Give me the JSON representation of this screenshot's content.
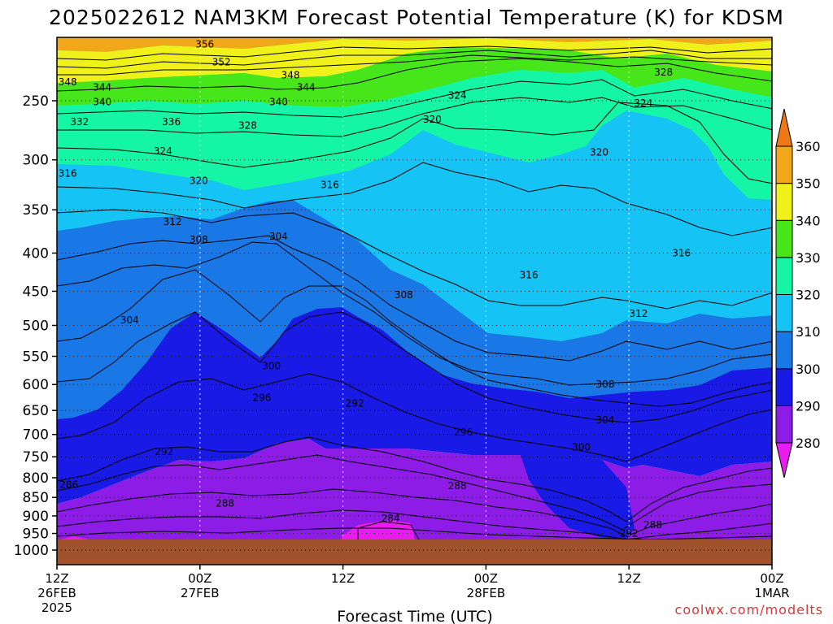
{
  "chart_data": {
    "type": "contour",
    "title": "2025022612 NAM3KM Forecast Potential Temperature (K) for KDSM",
    "xlabel": "Forecast Time (UTC)",
    "credit": "coolwx.com/modelts",
    "x_ticks": [
      {
        "hours": 0,
        "lines": [
          "12Z",
          "26FEB",
          "2025"
        ]
      },
      {
        "hours": 12,
        "lines": [
          "00Z",
          "27FEB"
        ]
      },
      {
        "hours": 24,
        "lines": [
          "12Z"
        ]
      },
      {
        "hours": 36,
        "lines": [
          "00Z",
          "28FEB"
        ]
      },
      {
        "hours": 48,
        "lines": [
          "12Z"
        ]
      },
      {
        "hours": 60,
        "lines": [
          "00Z",
          "1MAR"
        ]
      }
    ],
    "xlim_hours": [
      0,
      60
    ],
    "y_axis": {
      "scale": "pressure",
      "inverted": true,
      "ticks": [
        250,
        300,
        350,
        400,
        450,
        500,
        550,
        600,
        650,
        700,
        750,
        800,
        850,
        900,
        950,
        1000
      ]
    },
    "colorbar": {
      "levels": [
        280,
        290,
        300,
        310,
        320,
        330,
        340,
        350,
        360
      ],
      "colors": [
        "#e81cf0",
        "#8c1ce6",
        "#1a1ae6",
        "#1a78e6",
        "#16c3f5",
        "#14f5a6",
        "#47e61a",
        "#f0f01a",
        "#f0a81a",
        "#f07814"
      ],
      "extend": "both"
    },
    "ground_color": "#a0522d",
    "contour_labels": [
      {
        "v": "356",
        "t": 12.4,
        "p": 210
      },
      {
        "v": "352",
        "t": 13.8,
        "p": 222
      },
      {
        "v": "348",
        "t": 0.9,
        "p": 236
      },
      {
        "v": "344",
        "t": 3.8,
        "p": 240
      },
      {
        "v": "340",
        "t": 3.8,
        "p": 251
      },
      {
        "v": "348",
        "t": 19.6,
        "p": 231
      },
      {
        "v": "344",
        "t": 20.9,
        "p": 240
      },
      {
        "v": "340",
        "t": 18.6,
        "p": 251
      },
      {
        "v": "332",
        "t": 1.9,
        "p": 267
      },
      {
        "v": "336",
        "t": 9.6,
        "p": 267
      },
      {
        "v": "328",
        "t": 16.0,
        "p": 270
      },
      {
        "v": "324",
        "t": 8.9,
        "p": 292
      },
      {
        "v": "316",
        "t": 0.9,
        "p": 313
      },
      {
        "v": "320",
        "t": 11.9,
        "p": 320
      },
      {
        "v": "316",
        "t": 22.9,
        "p": 324
      },
      {
        "v": "312",
        "t": 9.7,
        "p": 363
      },
      {
        "v": "308",
        "t": 11.9,
        "p": 384
      },
      {
        "v": "304",
        "t": 18.6,
        "p": 380
      },
      {
        "v": "324",
        "t": 33.6,
        "p": 246
      },
      {
        "v": "320",
        "t": 31.5,
        "p": 265
      },
      {
        "v": "328",
        "t": 50.9,
        "p": 229
      },
      {
        "v": "324",
        "t": 49.2,
        "p": 252
      },
      {
        "v": "320",
        "t": 45.5,
        "p": 293
      },
      {
        "v": "316",
        "t": 52.4,
        "p": 400
      },
      {
        "v": "316",
        "t": 39.6,
        "p": 428
      },
      {
        "v": "308",
        "t": 29.1,
        "p": 455
      },
      {
        "v": "312",
        "t": 48.8,
        "p": 482
      },
      {
        "v": "304",
        "t": 6.1,
        "p": 492
      },
      {
        "v": "300",
        "t": 18.0,
        "p": 567
      },
      {
        "v": "296",
        "t": 17.2,
        "p": 625
      },
      {
        "v": "292",
        "t": 25.0,
        "p": 636
      },
      {
        "v": "308",
        "t": 46.0,
        "p": 600
      },
      {
        "v": "304",
        "t": 46.0,
        "p": 670
      },
      {
        "v": "296",
        "t": 34.1,
        "p": 695
      },
      {
        "v": "300",
        "t": 44.0,
        "p": 728
      },
      {
        "v": "292",
        "t": 9.0,
        "p": 738
      },
      {
        "v": "288",
        "t": 33.6,
        "p": 820
      },
      {
        "v": "286",
        "t": 1.0,
        "p": 817
      },
      {
        "v": "288",
        "t": 14.1,
        "p": 866
      },
      {
        "v": "284",
        "t": 28.0,
        "p": 907
      },
      {
        "v": "288",
        "t": 50.0,
        "p": 925
      },
      {
        "v": "292",
        "t": 48.0,
        "p": 950
      }
    ]
  }
}
